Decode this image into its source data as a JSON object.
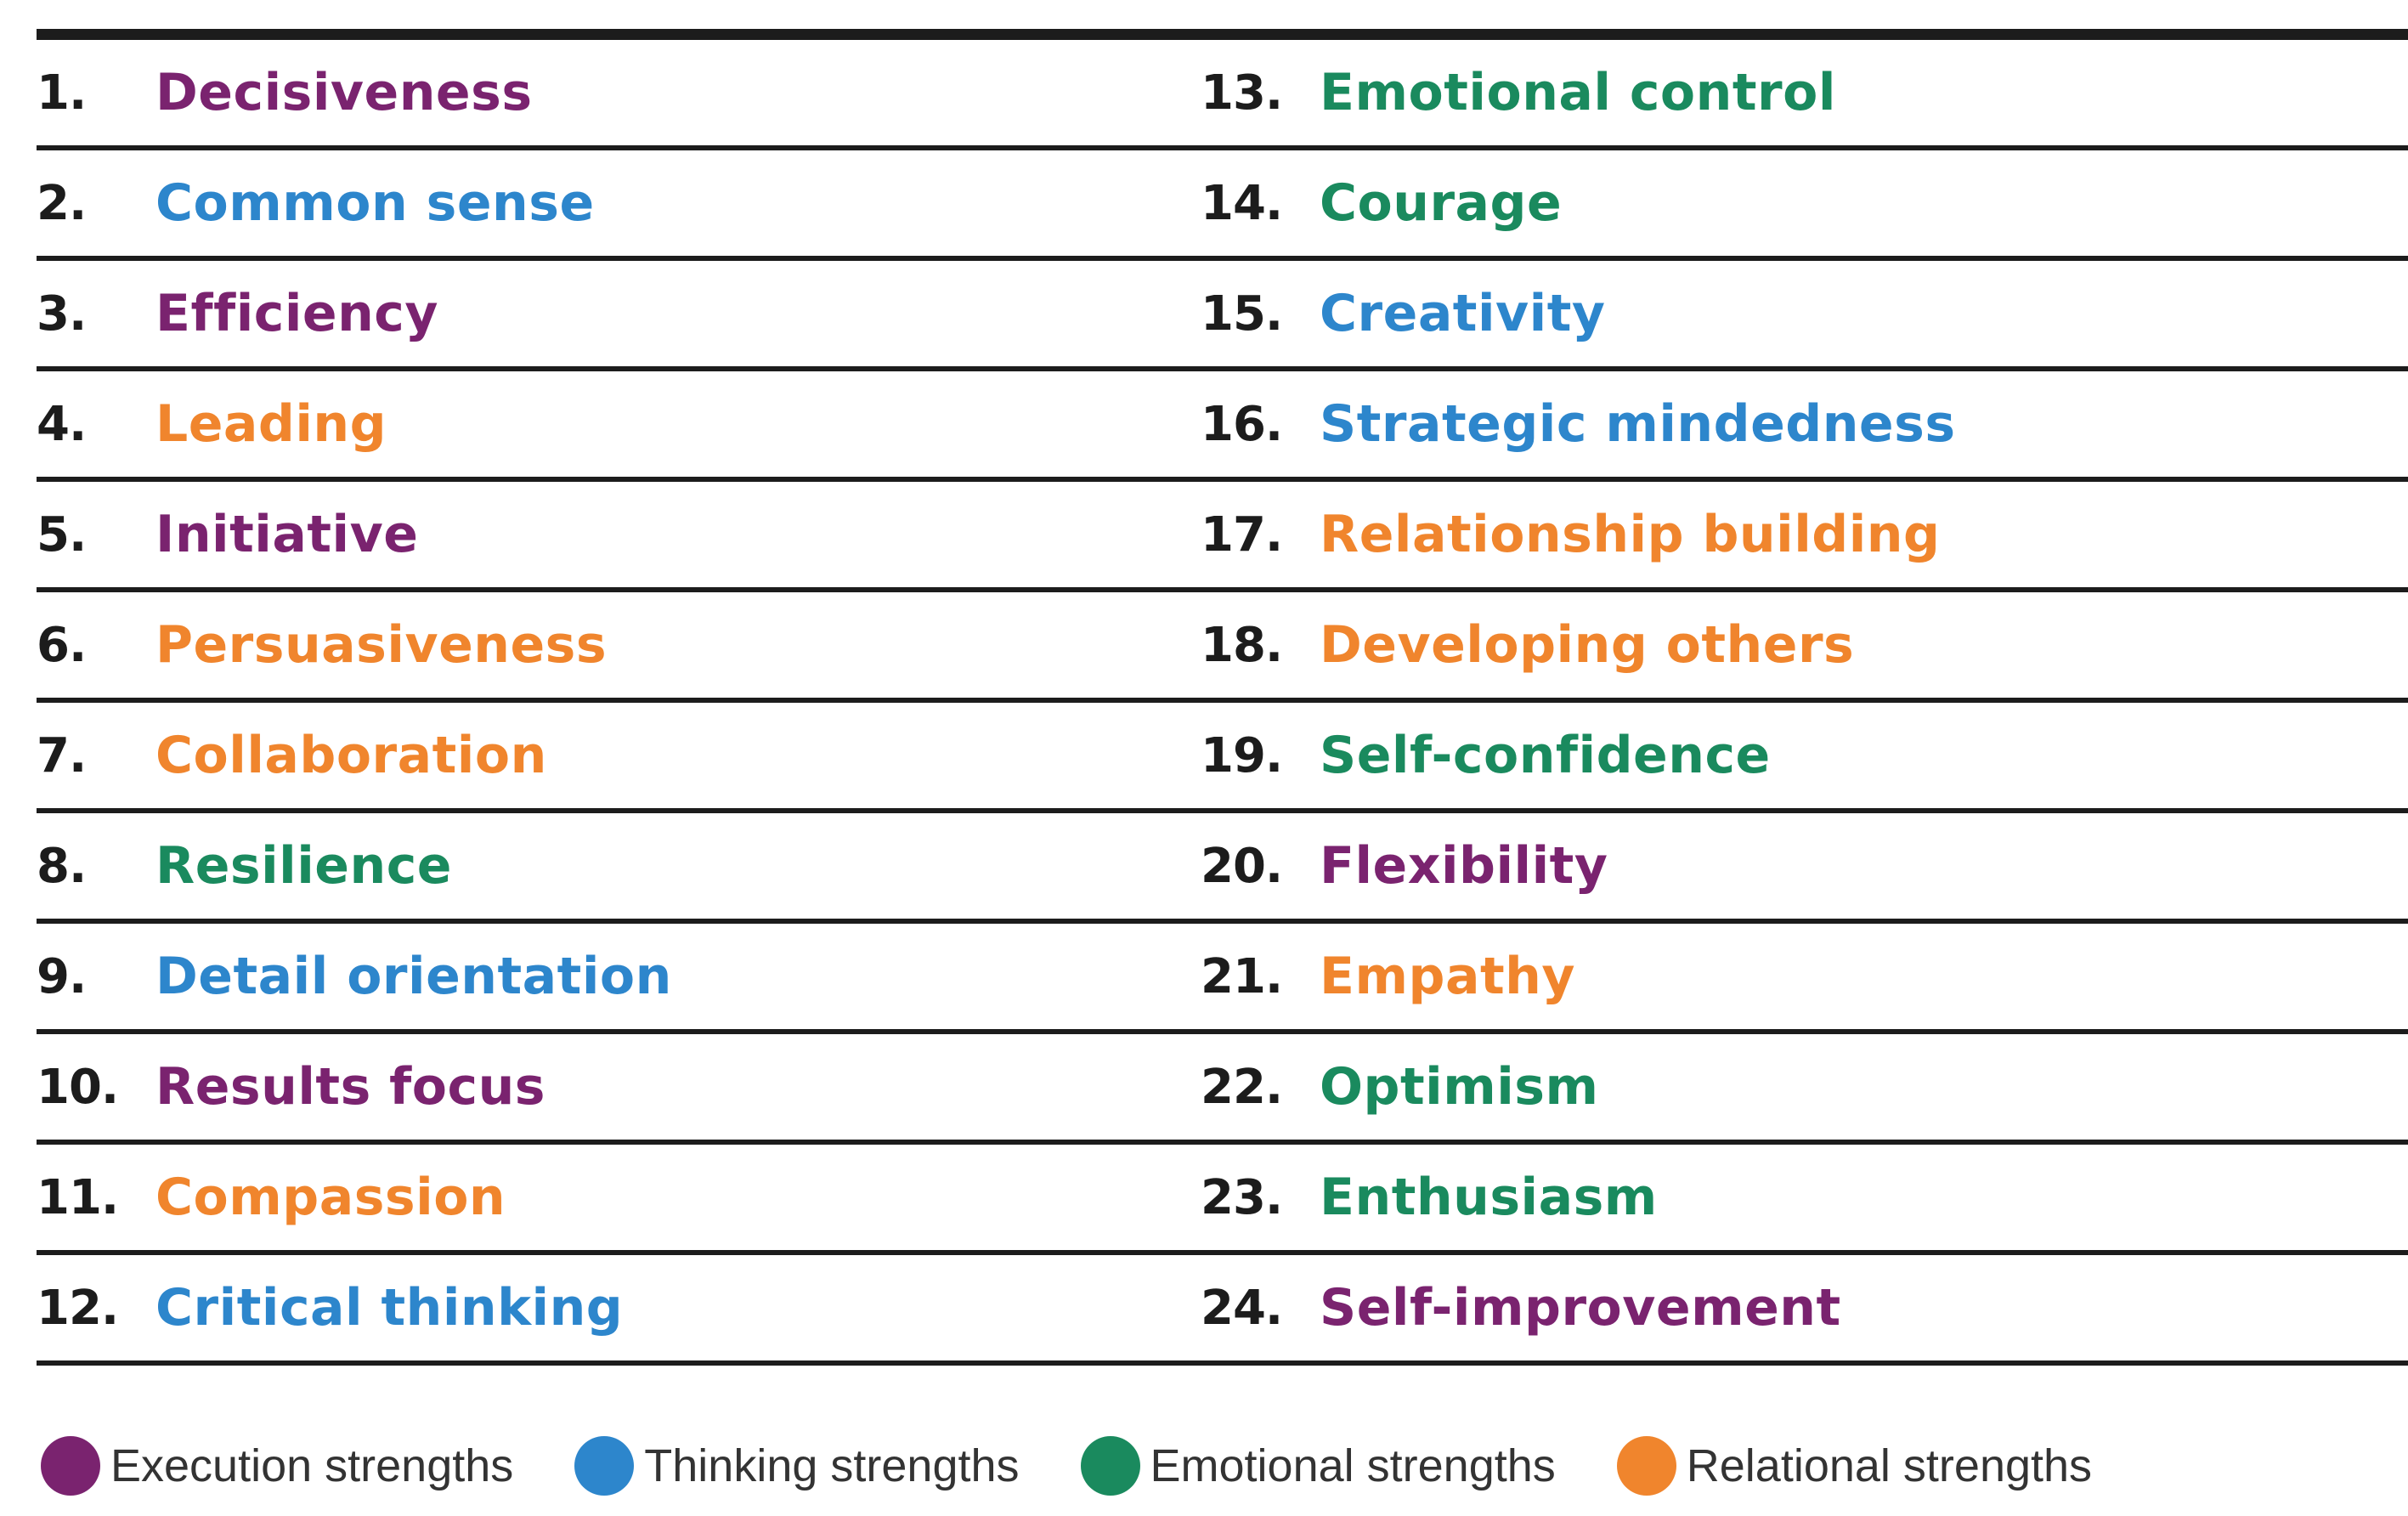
{
  "colors": {
    "execution": "#7a236f",
    "thinking": "#2d86cc",
    "emotional": "#1a8a5e",
    "relational": "#f0852d"
  },
  "items": [
    {
      "num": "1.",
      "label": "Decisiveness",
      "category": "execution"
    },
    {
      "num": "2.",
      "label": "Common sense",
      "category": "thinking"
    },
    {
      "num": "3.",
      "label": "Efficiency",
      "category": "execution"
    },
    {
      "num": "4.",
      "label": "Leading",
      "category": "relational"
    },
    {
      "num": "5.",
      "label": "Initiative",
      "category": "execution"
    },
    {
      "num": "6.",
      "label": "Persuasiveness",
      "category": "relational"
    },
    {
      "num": "7.",
      "label": "Collaboration",
      "category": "relational"
    },
    {
      "num": "8.",
      "label": "Resilience",
      "category": "emotional"
    },
    {
      "num": "9.",
      "label": "Detail orientation",
      "category": "thinking"
    },
    {
      "num": "10.",
      "label": "Results focus",
      "category": "execution"
    },
    {
      "num": "11.",
      "label": "Compassion",
      "category": "relational"
    },
    {
      "num": "12.",
      "label": "Critical thinking",
      "category": "thinking"
    },
    {
      "num": "13.",
      "label": "Emotional control",
      "category": "emotional"
    },
    {
      "num": "14.",
      "label": "Courage",
      "category": "emotional"
    },
    {
      "num": "15.",
      "label": "Creativity",
      "category": "thinking"
    },
    {
      "num": "16.",
      "label": "Strategic mindedness",
      "category": "thinking"
    },
    {
      "num": "17.",
      "label": "Relationship building",
      "category": "relational"
    },
    {
      "num": "18.",
      "label": "Developing others",
      "category": "relational"
    },
    {
      "num": "19.",
      "label": "Self-confidence",
      "category": "emotional"
    },
    {
      "num": "20.",
      "label": "Flexibility",
      "category": "execution"
    },
    {
      "num": "21.",
      "label": "Empathy",
      "category": "relational"
    },
    {
      "num": "22.",
      "label": "Optimism",
      "category": "emotional"
    },
    {
      "num": "23.",
      "label": "Enthusiasm",
      "category": "emotional"
    },
    {
      "num": "24.",
      "label": "Self-improvement",
      "category": "execution"
    }
  ],
  "legend": [
    {
      "label": "Execution strengths",
      "category": "execution"
    },
    {
      "label": "Thinking strengths",
      "category": "thinking"
    },
    {
      "label": "Emotional strengths",
      "category": "emotional"
    },
    {
      "label": "Relational strengths",
      "category": "relational"
    }
  ]
}
